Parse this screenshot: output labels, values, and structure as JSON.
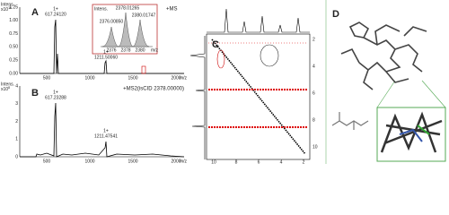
{
  "panels": {
    "a": {
      "label": "A",
      "y_title": "Intens.",
      "y_scale": "x10",
      "y_exp": "10",
      "mode": "+MS",
      "yticks": [
        "1.25",
        "1.00",
        "0.75",
        "0.50",
        "0.25",
        "0.00"
      ],
      "xticks": [
        "500",
        "1000",
        "1500",
        "2000"
      ],
      "x_title": "m/z",
      "peaks": [
        {
          "charge": "1+",
          "mz": "617.24120"
        },
        {
          "charge": "1+",
          "mz": "1211.50060"
        }
      ],
      "inset": {
        "y_title": "Intens.",
        "peaks": [
          "2376.00850",
          "2378.01265",
          "2380.01747"
        ],
        "xticks": [
          "2376",
          "2378",
          "2380"
        ],
        "x_title": "m/z"
      }
    },
    "b": {
      "label": "B",
      "y_title": "Intens.",
      "y_scale": "x10",
      "y_exp": "8",
      "mode": "+MS2(isCID 2378.00000)",
      "yticks": [
        "4",
        "3",
        "2",
        "1",
        "0"
      ],
      "xticks": [
        "500",
        "1000",
        "1500",
        "2000"
      ],
      "x_title": "m/z",
      "peaks": [
        {
          "charge": "1+",
          "mz": "617.23288"
        },
        {
          "charge": "1+",
          "mz": "1211.47541"
        }
      ]
    },
    "c": {
      "label": "C",
      "ticks": [
        "10",
        "8",
        "6",
        "4",
        "2"
      ]
    },
    "d": {
      "label": "D"
    }
  }
}
